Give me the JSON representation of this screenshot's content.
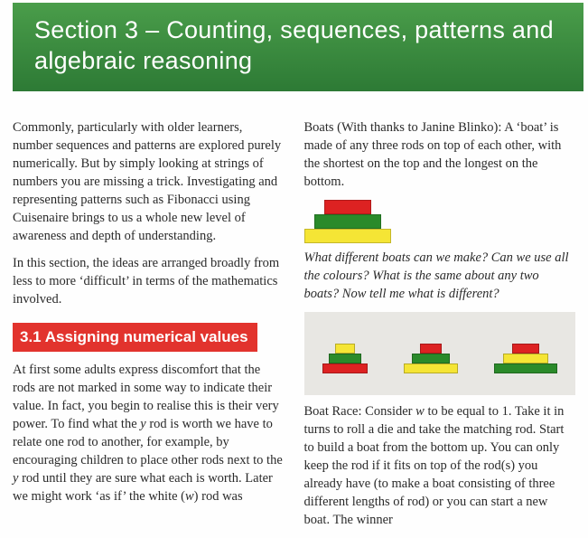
{
  "header": {
    "title": "Section 3 – Counting, sequences, patterns and algebraic reasoning"
  },
  "left": {
    "p1": "Commonly, particularly with older learners, number sequences and patterns are explored purely numerically. But by simply looking at strings of numbers you are missing a trick. Investigating and representing patterns such as Fibonacci using Cuisenaire brings to us a whole new level of awareness and depth of understanding.",
    "p2": "In this section, the ideas are arranged broadly from less to more ‘difficult’ in terms of the mathematics involved.",
    "subheading": "3.1 Assigning numerical values",
    "p3a": "At first some adults express discomfort that the rods are not marked in some way to indicate their value. In fact, you begin to realise this is their very power. To find what the ",
    "p3b": " rod is worth we have to relate one rod to another, for example, by encouraging children to place other rods next to the ",
    "p3c": " rod until they are sure what each is worth. Later we might work ‘as if’ the white (",
    "p3d": ") rod was",
    "y1": "y",
    "y2": "y",
    "w": "w"
  },
  "right": {
    "p1": "Boats (With thanks to Janine Blinko): A ‘boat’ is made of any three rods on top of each other, with the shortest on the top and the longest on the bottom.",
    "q": "What different boats can we make? Can we use all the colours? What is the same about any two boats? Now tell me what is different?",
    "p2a": "Boat Race: Consider ",
    "wvar": "w",
    "p2b": " to be equal to 1. Take it in turns to roll a die and take the matching rod. Start to build a boat from the bottom up. You can only keep the rod if it fits on top of the rod(s) you already have (to make a boat consisting of three different lengths of rod) or you can start a new boat. The winner"
  },
  "colors": {
    "header_bg_top": "#4a9d4a",
    "header_bg_bottom": "#2d7a35",
    "subheading_bg": "#e2332d",
    "rod_red": "#d22",
    "rod_green": "#2a8a2a",
    "rod_yellow": "#f5e535",
    "photo_bg": "#e8e7e3"
  }
}
